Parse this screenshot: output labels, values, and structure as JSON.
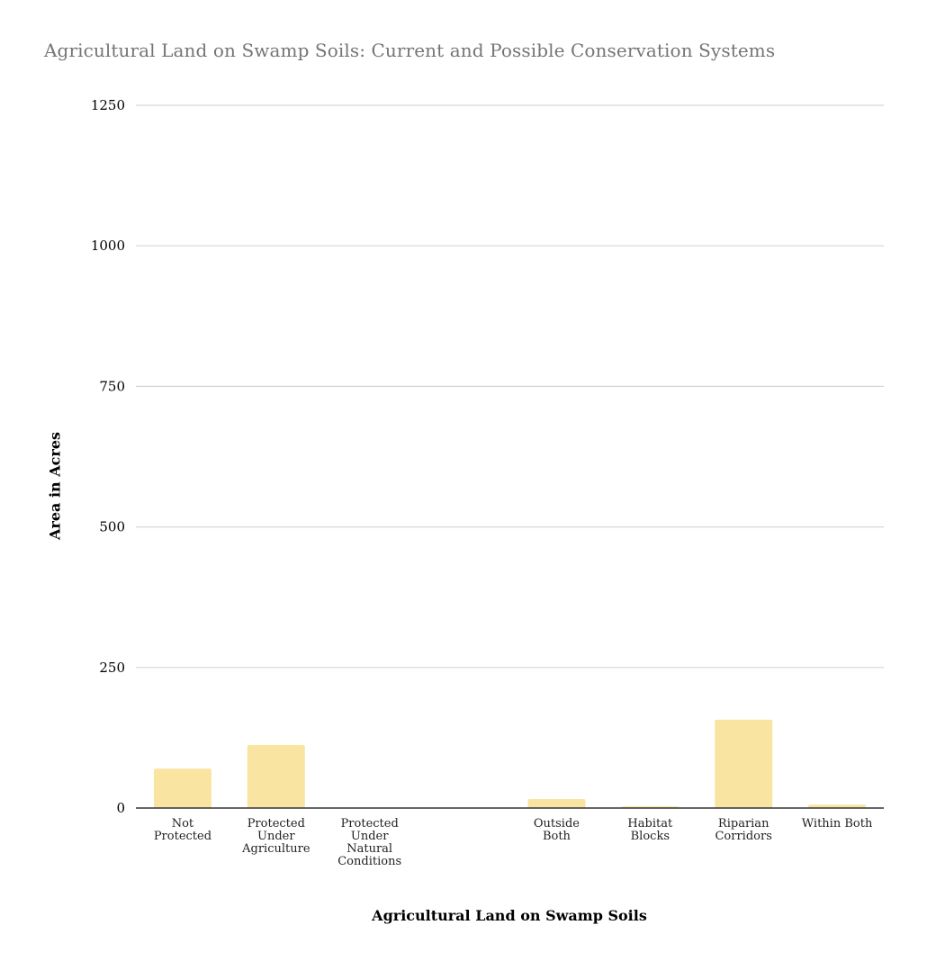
{
  "chart_data": {
    "type": "bar",
    "title": "Agricultural Land on Swamp Soils: Current and Possible Conservation Systems",
    "xlabel": "Agricultural Land on Swamp Soils",
    "ylabel": "Area in Acres",
    "ylim": [
      0,
      1250
    ],
    "yticks": [
      "0",
      "250",
      "500",
      "750",
      "1000",
      "1250"
    ],
    "grid": true,
    "bar_color": "#f9e4a1",
    "categories": [
      {
        "label": [
          "Not",
          "Protected"
        ],
        "value": 70
      },
      {
        "label": [
          "Protected",
          "Under",
          "Agriculture"
        ],
        "value": 112
      },
      {
        "label": [
          "Protected",
          "Under",
          "Natural",
          "Conditions"
        ],
        "value": 0
      },
      {
        "label": [],
        "value": null
      },
      {
        "label": [
          "Outside",
          "Both"
        ],
        "value": 16
      },
      {
        "label": [
          "Habitat",
          "Blocks"
        ],
        "value": 3
      },
      {
        "label": [
          "Riparian",
          "Corridors"
        ],
        "value": 157
      },
      {
        "label": [
          "Within Both"
        ],
        "value": 6
      }
    ]
  }
}
